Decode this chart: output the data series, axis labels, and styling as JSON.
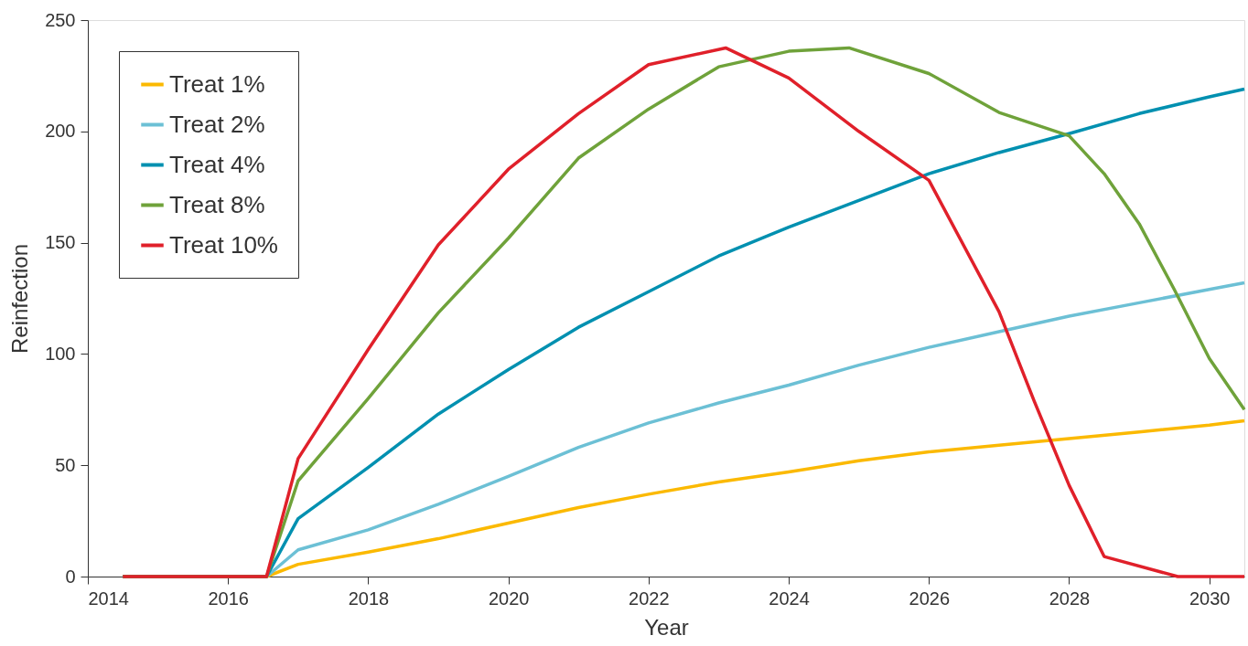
{
  "chart_data": {
    "type": "line",
    "xlabel": "Year",
    "ylabel": "Reinfection",
    "xlim": [
      2014,
      2030.5
    ],
    "xticks": [
      2014,
      2016,
      2018,
      2020,
      2022,
      2024,
      2026,
      2028,
      2030
    ],
    "ylim": [
      0,
      250
    ],
    "yticks": [
      0,
      50,
      100,
      150,
      200,
      250
    ],
    "grid": false,
    "legend": "top left",
    "line_style": "solid",
    "marker": "none",
    "series": [
      {
        "name": "Treat 1%",
        "color": "#fbb900",
        "x": [
          2014.5,
          2016.55,
          2017,
          2018,
          2019,
          2020,
          2021,
          2022,
          2023,
          2024,
          2025,
          2026,
          2027,
          2028,
          2029,
          2030,
          2030.5
        ],
        "values": [
          0,
          0,
          5.5,
          11,
          17,
          24,
          31,
          37,
          42.5,
          47,
          52,
          56,
          59,
          62,
          65,
          68,
          70
        ]
      },
      {
        "name": "Treat 2%",
        "color": "#6cc0d5",
        "x": [
          2014.5,
          2016.55,
          2017,
          2018,
          2019,
          2020,
          2021,
          2022,
          2023,
          2024,
          2025,
          2026,
          2027,
          2028,
          2029,
          2030,
          2030.5
        ],
        "values": [
          0,
          0,
          12,
          21,
          32.5,
          45,
          58,
          69,
          78,
          86,
          95,
          103,
          110,
          117,
          123,
          129,
          132
        ]
      },
      {
        "name": "Treat 4%",
        "color": "#0090b0",
        "x": [
          2014.5,
          2016.55,
          2017,
          2018,
          2019,
          2020,
          2021,
          2022,
          2023,
          2024,
          2025,
          2026,
          2027,
          2028,
          2029,
          2030,
          2030.5
        ],
        "values": [
          0,
          0,
          26,
          49,
          73,
          93,
          112,
          128,
          144,
          157,
          169,
          181,
          190.5,
          199,
          208,
          215.5,
          219
        ]
      },
      {
        "name": "Treat 8%",
        "color": "#6fa23a",
        "x": [
          2014.5,
          2016.55,
          2017,
          2018,
          2019,
          2020,
          2021,
          2022,
          2023,
          2024,
          2024.86,
          2026,
          2027,
          2028,
          2028.5,
          2029,
          2029.5,
          2030,
          2030.5
        ],
        "values": [
          0,
          0,
          43,
          80,
          118.5,
          152,
          188,
          210,
          229,
          236,
          237.5,
          226,
          208.5,
          198,
          181,
          158.5,
          129,
          98,
          75
        ]
      },
      {
        "name": "Treat 10%",
        "color": "#e0202a",
        "x": [
          2014.5,
          2016.55,
          2017,
          2018,
          2019,
          2020,
          2021,
          2022,
          2023.1,
          2024,
          2025,
          2026,
          2027,
          2027.5,
          2028,
          2028.5,
          2029.55,
          2030.5
        ],
        "values": [
          0,
          0,
          53,
          102,
          149,
          183,
          208,
          230,
          237.5,
          224,
          200,
          178,
          119,
          79,
          41,
          9,
          0,
          0
        ]
      }
    ]
  }
}
